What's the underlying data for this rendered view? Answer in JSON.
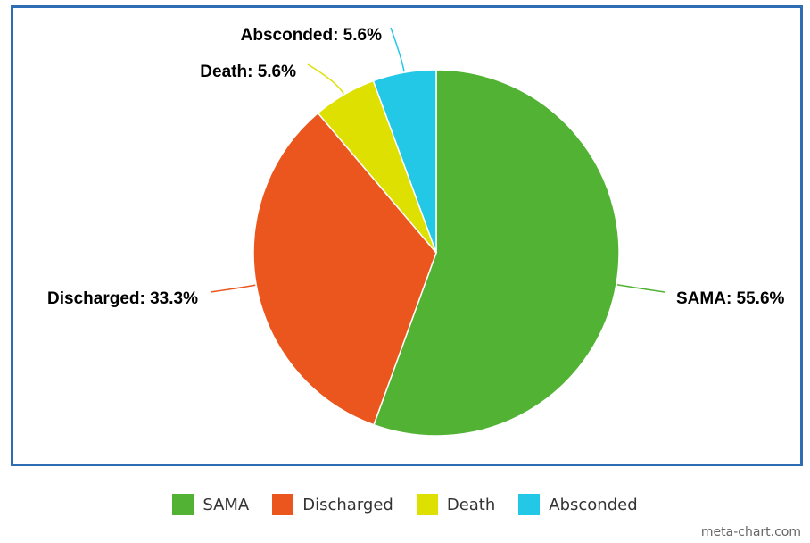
{
  "chart_data": {
    "type": "pie",
    "categories": [
      "SAMA",
      "Discharged",
      "Death",
      "Absconded"
    ],
    "values": [
      55.6,
      33.3,
      5.6,
      5.6
    ],
    "data_labels": [
      "SAMA: 55.6%",
      "Discharged: 33.3%",
      "Death: 5.6%",
      "Absconded: 5.6%"
    ],
    "colors": [
      "#52b233",
      "#ea561d",
      "#dde000",
      "#22c8e6"
    ],
    "legend_position": "bottom",
    "start_angle_deg": 0,
    "direction": "clockwise"
  },
  "legend": {
    "items": [
      {
        "label": "SAMA",
        "color": "#52b233"
      },
      {
        "label": "Discharged",
        "color": "#ea561d"
      },
      {
        "label": "Death",
        "color": "#dde000"
      },
      {
        "label": "Absconded",
        "color": "#22c8e6"
      }
    ]
  },
  "credit": "meta-chart.com",
  "frame_color": "#2e6db4"
}
